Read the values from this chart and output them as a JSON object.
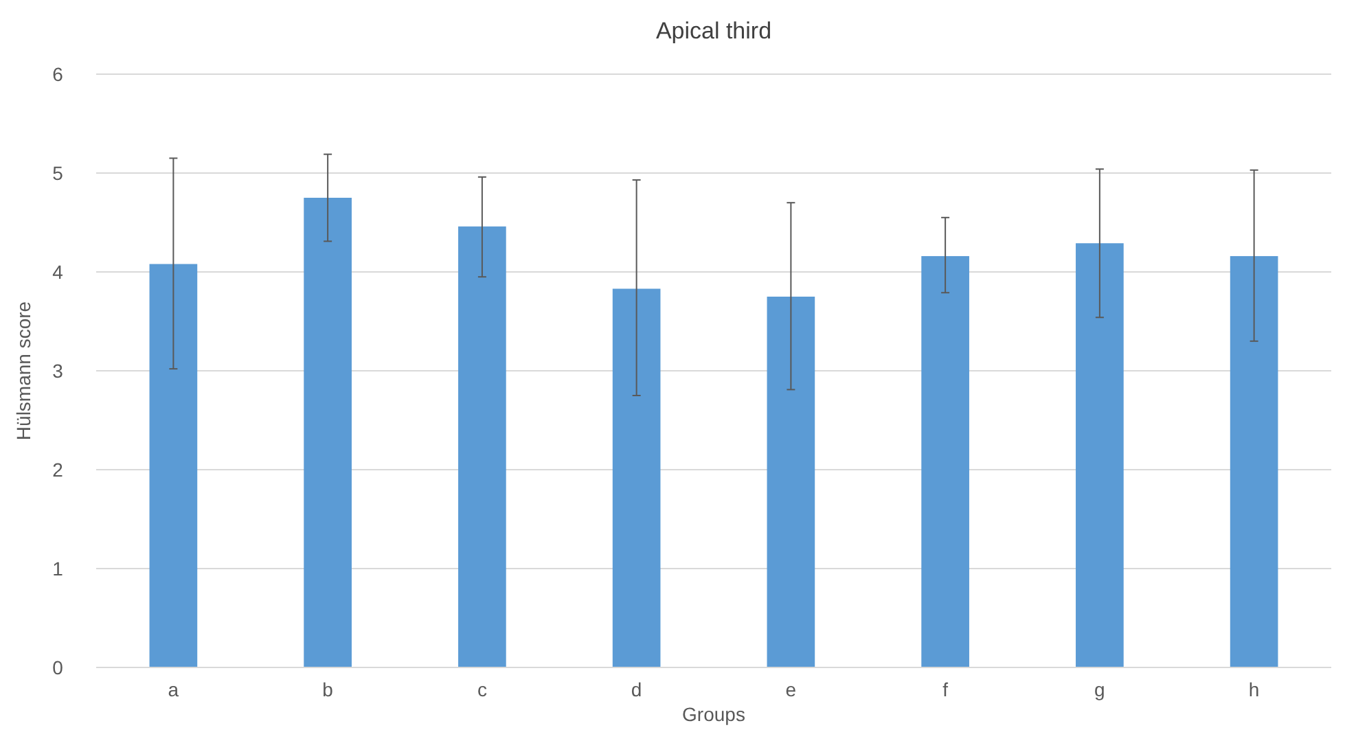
{
  "chart_data": {
    "type": "bar",
    "title": "Apical third",
    "xlabel": "Groups",
    "ylabel": "Hülsmann score",
    "categories": [
      "a",
      "b",
      "c",
      "d",
      "e",
      "f",
      "g",
      "h"
    ],
    "values": [
      4.08,
      4.75,
      4.46,
      3.83,
      3.75,
      4.16,
      4.29,
      4.16
    ],
    "errors": [
      [
        3.02,
        5.15
      ],
      [
        4.31,
        5.19
      ],
      [
        3.95,
        4.96
      ],
      [
        2.75,
        4.93
      ],
      [
        2.81,
        4.7
      ],
      [
        3.79,
        4.55
      ],
      [
        3.54,
        5.04
      ],
      [
        3.3,
        5.03
      ]
    ],
    "color": "#5b9bd5",
    "ylim": [
      0,
      6
    ],
    "yticks": [
      0,
      1,
      2,
      3,
      4,
      5,
      6
    ],
    "grid": "y"
  }
}
